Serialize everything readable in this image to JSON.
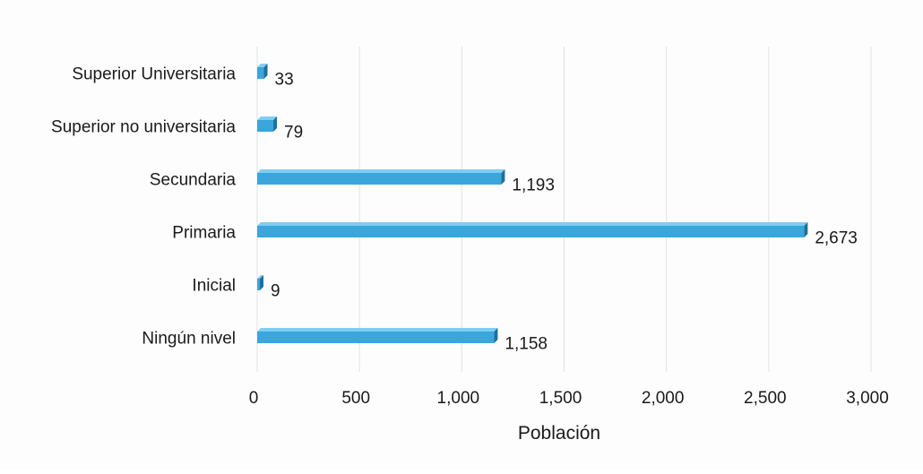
{
  "chart_data": {
    "type": "bar",
    "orientation": "horizontal",
    "categories": [
      "Superior Universitaria",
      "Superior no universitaria",
      "Secundaria",
      "Primaria",
      "Inicial",
      "Ningún nivel"
    ],
    "values": [
      33,
      79,
      1193,
      2673,
      9,
      1158
    ],
    "value_labels": [
      "33",
      "79",
      "1,193",
      "2,673",
      "9",
      "1,158"
    ],
    "xlabel": "Población",
    "ylabel": "",
    "xlim": [
      0,
      3000
    ],
    "x_ticks": [
      0,
      500,
      1000,
      1500,
      2000,
      2500,
      3000
    ],
    "x_tick_labels": [
      "0",
      "500",
      "1,000",
      "1,500",
      "2,000",
      "2,500",
      "3,000"
    ],
    "grid": "vertical",
    "legend": "none",
    "colors": {
      "bar_face": "#3aa6dc",
      "bar_top": "#7fcdf2",
      "bar_side": "#1f6f9a",
      "grid": "#e2e2e2"
    }
  }
}
